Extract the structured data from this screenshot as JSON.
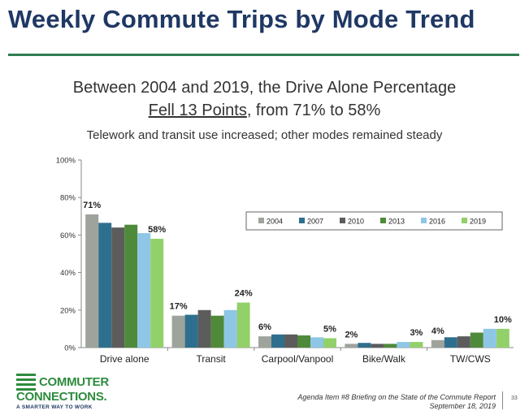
{
  "slide": {
    "title": "Weekly Commute Trips by Mode Trend",
    "headline_line1": "Between 2004 and 2019, the Drive Alone Percentage",
    "headline_underlined": "Fell 13 Points",
    "headline_rest": ", from 71% to 58%",
    "subheadline": "Telework and transit use increased; other modes remained steady"
  },
  "chart_data": {
    "type": "bar",
    "title": "",
    "xlabel": "",
    "ylabel": "",
    "ylim": [
      0,
      100
    ],
    "yticks": [
      "0%",
      "20%",
      "40%",
      "60%",
      "80%",
      "100%"
    ],
    "categories": [
      "Drive alone",
      "Transit",
      "Carpool/Vanpool",
      "Bike/Walk",
      "TW/CWS"
    ],
    "legend_position": "top-right, inside plot",
    "series": [
      {
        "name": "2004",
        "color": "#9ea49b",
        "values": [
          71,
          17,
          6,
          2,
          4
        ]
      },
      {
        "name": "2007",
        "color": "#2f6f8e",
        "values": [
          66.5,
          17.5,
          7,
          2.5,
          5.5
        ]
      },
      {
        "name": "2010",
        "color": "#5c5c5c",
        "values": [
          64,
          20,
          7,
          2,
          6
        ]
      },
      {
        "name": "2013",
        "color": "#4f8a3a",
        "values": [
          65.5,
          17,
          6.5,
          2,
          8
        ]
      },
      {
        "name": "2016",
        "color": "#8ec6e6",
        "values": [
          61,
          20,
          5.5,
          3,
          10
        ]
      },
      {
        "name": "2019",
        "color": "#92d06a",
        "values": [
          58,
          24,
          5,
          3,
          10
        ]
      }
    ],
    "data_labels": [
      {
        "category": "Drive alone",
        "series": "2004",
        "text": "71%"
      },
      {
        "category": "Drive alone",
        "series": "2019",
        "text": "58%"
      },
      {
        "category": "Transit",
        "series": "2004",
        "text": "17%"
      },
      {
        "category": "Transit",
        "series": "2019",
        "text": "24%"
      },
      {
        "category": "Carpool/Vanpool",
        "series": "2004",
        "text": "6%"
      },
      {
        "category": "Carpool/Vanpool",
        "series": "2019",
        "text": "5%"
      },
      {
        "category": "Bike/Walk",
        "series": "2004",
        "text": "2%"
      },
      {
        "category": "Bike/Walk",
        "series": "2019",
        "text": "3%"
      },
      {
        "category": "TW/CWS",
        "series": "2004",
        "text": "4%"
      },
      {
        "category": "TW/CWS",
        "series": "2019",
        "text": "10%"
      }
    ]
  },
  "logo": {
    "line1": "COMMUTER",
    "line2": "CONNECTIONS.",
    "tagline": "A SMARTER WAY TO WORK"
  },
  "footer": {
    "line1": "Agenda Item #8 Briefing on the State of the Commute Report",
    "line2": "September 18, 2019",
    "page_number": "33"
  }
}
